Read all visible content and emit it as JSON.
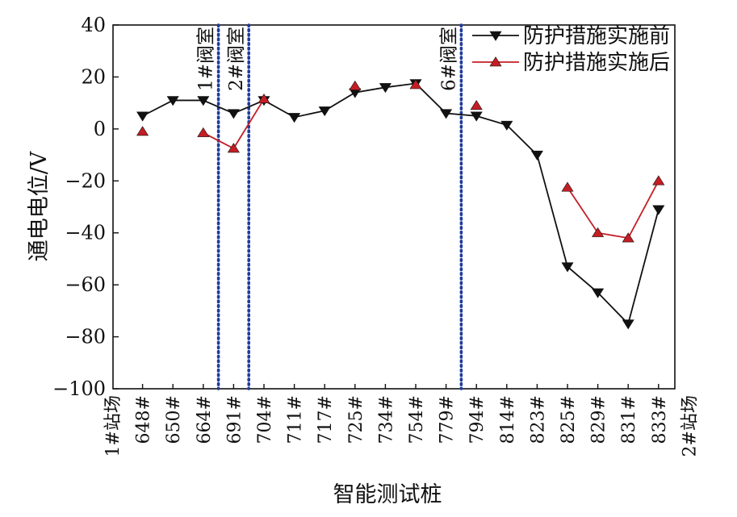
{
  "chart_data": {
    "type": "line",
    "xlabel": "智能测试桩",
    "ylabel": "通电电位/V",
    "ylim": [
      -100,
      40
    ],
    "yticks": [
      40,
      20,
      0,
      -20,
      -40,
      -60,
      -80,
      -100
    ],
    "yticks_text": [
      "40",
      "20",
      "0",
      "−20",
      "−40",
      "−60",
      "−80",
      "−100"
    ],
    "categories": [
      "1#站场",
      "648#",
      "650#",
      "664#",
      "691#",
      "704#",
      "711#",
      "717#",
      "725#",
      "734#",
      "754#",
      "779#",
      "794#",
      "814#",
      "823#",
      "825#",
      "829#",
      "831#",
      "833#",
      "2#站场"
    ],
    "legend_position": "top-right",
    "grid": false,
    "series": [
      {
        "name": "防护措施实施前",
        "color": "#111111",
        "marker": "triangle-down",
        "values": [
          null,
          5,
          11,
          11,
          6,
          11,
          4.5,
          7,
          14,
          16,
          17.5,
          6,
          5,
          1.5,
          -10,
          -53,
          -63,
          -75,
          -31,
          null
        ],
        "segments": [
          [
            1,
            18
          ]
        ]
      },
      {
        "name": "防护措施实施后",
        "color": "#c41e24",
        "marker": "triangle-up",
        "values": [
          null,
          -1,
          null,
          -1.5,
          -7.5,
          11.5,
          null,
          null,
          16.5,
          null,
          17,
          null,
          9,
          null,
          null,
          -22.5,
          -40,
          -42,
          -20,
          null
        ],
        "segments": [
          [
            3,
            5
          ],
          [
            15,
            18
          ]
        ]
      }
    ],
    "annotations": [
      {
        "text": "1#阀室",
        "between": [
          3,
          4
        ]
      },
      {
        "text": "2#阀室",
        "between": [
          4,
          5
        ]
      },
      {
        "text": "6#阀室",
        "between": [
          11,
          12
        ]
      }
    ],
    "divider_color": "#1f3c9c"
  }
}
